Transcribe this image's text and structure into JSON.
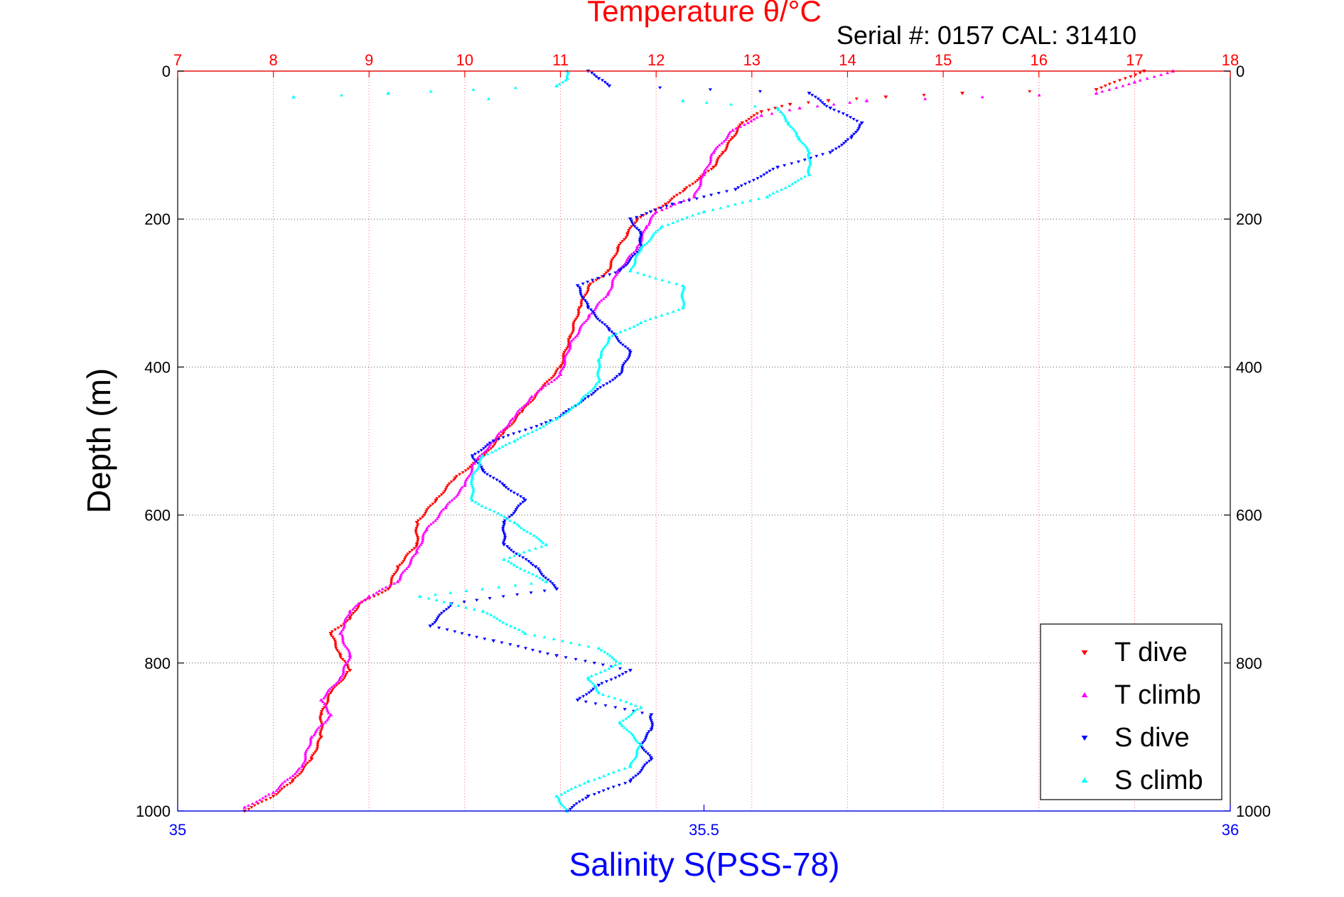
{
  "chart_data": {
    "type": "scatter",
    "title": "Temperature θ/°C",
    "subtitle": "Serial #: 0157  CAL: 31410",
    "ylabel": "Depth (m)",
    "xlabel": "Salinity S(PSS-78)",
    "top_axis": {
      "label": "Temperature θ/°C",
      "lim": [
        7,
        18
      ],
      "ticks": [
        7,
        8,
        9,
        10,
        11,
        12,
        13,
        14,
        15,
        16,
        17,
        18
      ],
      "color": "#ff0000"
    },
    "bottom_axis": {
      "label": "Salinity S(PSS-78)",
      "lim": [
        35,
        36
      ],
      "ticks": [
        35,
        35.5,
        36
      ],
      "tick_labels": [
        "35",
        "35.5",
        "36"
      ],
      "color": "#0000ff"
    },
    "y_axis": {
      "lim": [
        0,
        1000
      ],
      "reversed": true,
      "ticks": [
        0,
        200,
        400,
        600,
        800,
        1000
      ]
    },
    "grid": true,
    "legend_position": "bottom-right",
    "series": [
      {
        "name": "T dive",
        "axis": "temperature",
        "color": "#ff0000",
        "marker": "triangle-down",
        "points": [
          [
            17.1,
            0
          ],
          [
            16.6,
            25
          ],
          [
            15.2,
            30
          ],
          [
            14.4,
            35
          ],
          [
            13.8,
            40
          ],
          [
            13.4,
            45
          ],
          [
            13.1,
            55
          ],
          [
            12.9,
            70
          ],
          [
            12.8,
            90
          ],
          [
            12.7,
            110
          ],
          [
            12.6,
            130
          ],
          [
            12.3,
            160
          ],
          [
            12.1,
            180
          ],
          [
            11.8,
            200
          ],
          [
            11.7,
            220
          ],
          [
            11.6,
            240
          ],
          [
            11.5,
            270
          ],
          [
            11.3,
            290
          ],
          [
            11.2,
            320
          ],
          [
            11.1,
            360
          ],
          [
            11.0,
            400
          ],
          [
            10.8,
            430
          ],
          [
            10.6,
            460
          ],
          [
            10.4,
            490
          ],
          [
            10.2,
            520
          ],
          [
            9.9,
            550
          ],
          [
            9.7,
            580
          ],
          [
            9.5,
            610
          ],
          [
            9.5,
            640
          ],
          [
            9.3,
            670
          ],
          [
            9.2,
            700
          ],
          [
            8.9,
            720
          ],
          [
            8.8,
            740
          ],
          [
            8.6,
            760
          ],
          [
            8.7,
            790
          ],
          [
            8.8,
            810
          ],
          [
            8.6,
            840
          ],
          [
            8.5,
            870
          ],
          [
            8.5,
            900
          ],
          [
            8.4,
            930
          ],
          [
            8.2,
            960
          ],
          [
            8.0,
            980
          ],
          [
            7.7,
            1000
          ]
        ]
      },
      {
        "name": "T climb",
        "axis": "temperature",
        "color": "#ff00ff",
        "marker": "triangle-up",
        "points": [
          [
            17.4,
            0
          ],
          [
            17.0,
            15
          ],
          [
            16.6,
            30
          ],
          [
            14.2,
            40
          ],
          [
            13.5,
            50
          ],
          [
            13.1,
            60
          ],
          [
            12.8,
            80
          ],
          [
            12.6,
            110
          ],
          [
            12.5,
            140
          ],
          [
            12.4,
            170
          ],
          [
            12.0,
            190
          ],
          [
            11.9,
            210
          ],
          [
            11.8,
            240
          ],
          [
            11.6,
            270
          ],
          [
            11.5,
            300
          ],
          [
            11.3,
            330
          ],
          [
            11.1,
            370
          ],
          [
            11.0,
            410
          ],
          [
            10.7,
            440
          ],
          [
            10.5,
            470
          ],
          [
            10.3,
            500
          ],
          [
            10.1,
            530
          ],
          [
            10.0,
            560
          ],
          [
            9.8,
            590
          ],
          [
            9.6,
            620
          ],
          [
            9.5,
            650
          ],
          [
            9.3,
            690
          ],
          [
            9.0,
            710
          ],
          [
            8.8,
            730
          ],
          [
            8.7,
            760
          ],
          [
            8.8,
            790
          ],
          [
            8.7,
            820
          ],
          [
            8.5,
            850
          ],
          [
            8.6,
            870
          ],
          [
            8.4,
            900
          ],
          [
            8.3,
            940
          ],
          [
            8.0,
            975
          ],
          [
            7.7,
            995
          ]
        ]
      },
      {
        "name": "S dive",
        "axis": "salinity",
        "color": "#0000ff",
        "marker": "triangle-down",
        "points": [
          [
            35.39,
            0
          ],
          [
            35.4,
            10
          ],
          [
            35.41,
            20
          ],
          [
            35.6,
            30
          ],
          [
            35.62,
            50
          ],
          [
            35.65,
            70
          ],
          [
            35.64,
            90
          ],
          [
            35.62,
            110
          ],
          [
            35.57,
            130
          ],
          [
            35.53,
            160
          ],
          [
            35.47,
            180
          ],
          [
            35.43,
            200
          ],
          [
            35.44,
            220
          ],
          [
            35.44,
            240
          ],
          [
            35.42,
            270
          ],
          [
            35.38,
            290
          ],
          [
            35.39,
            320
          ],
          [
            35.41,
            350
          ],
          [
            35.43,
            380
          ],
          [
            35.42,
            410
          ],
          [
            35.39,
            440
          ],
          [
            35.36,
            470
          ],
          [
            35.3,
            500
          ],
          [
            35.28,
            520
          ],
          [
            35.29,
            540
          ],
          [
            35.31,
            560
          ],
          [
            35.33,
            580
          ],
          [
            35.31,
            610
          ],
          [
            35.31,
            640
          ],
          [
            35.34,
            670
          ],
          [
            35.36,
            700
          ],
          [
            35.26,
            720
          ],
          [
            35.24,
            750
          ],
          [
            35.3,
            770
          ],
          [
            35.36,
            790
          ],
          [
            35.43,
            810
          ],
          [
            35.4,
            830
          ],
          [
            35.38,
            850
          ],
          [
            35.45,
            870
          ],
          [
            35.45,
            890
          ],
          [
            35.44,
            910
          ],
          [
            35.45,
            930
          ],
          [
            35.43,
            960
          ],
          [
            35.39,
            980
          ],
          [
            35.37,
            1000
          ]
        ]
      },
      {
        "name": "S climb",
        "axis": "salinity",
        "color": "#00ffff",
        "marker": "triangle-up",
        "points": [
          [
            35.37,
            0
          ],
          [
            35.37,
            10
          ],
          [
            35.36,
            20
          ],
          [
            35.2,
            30
          ],
          [
            35.11,
            35
          ],
          [
            35.48,
            40
          ],
          [
            35.57,
            50
          ],
          [
            35.58,
            70
          ],
          [
            35.59,
            90
          ],
          [
            35.6,
            110
          ],
          [
            35.6,
            140
          ],
          [
            35.56,
            170
          ],
          [
            35.5,
            190
          ],
          [
            35.46,
            210
          ],
          [
            35.44,
            240
          ],
          [
            35.43,
            270
          ],
          [
            35.48,
            290
          ],
          [
            35.48,
            320
          ],
          [
            35.44,
            340
          ],
          [
            35.41,
            360
          ],
          [
            35.4,
            390
          ],
          [
            35.4,
            420
          ],
          [
            35.38,
            450
          ],
          [
            35.36,
            470
          ],
          [
            35.32,
            500
          ],
          [
            35.29,
            520
          ],
          [
            35.28,
            550
          ],
          [
            35.28,
            580
          ],
          [
            35.32,
            610
          ],
          [
            35.35,
            640
          ],
          [
            35.31,
            660
          ],
          [
            35.35,
            690
          ],
          [
            35.23,
            710
          ],
          [
            35.29,
            730
          ],
          [
            35.33,
            760
          ],
          [
            35.4,
            780
          ],
          [
            35.42,
            800
          ],
          [
            35.39,
            820
          ],
          [
            35.4,
            840
          ],
          [
            35.44,
            860
          ],
          [
            35.42,
            880
          ],
          [
            35.44,
            910
          ],
          [
            35.43,
            940
          ],
          [
            35.39,
            960
          ],
          [
            35.36,
            980
          ],
          [
            35.37,
            1000
          ]
        ]
      }
    ]
  }
}
